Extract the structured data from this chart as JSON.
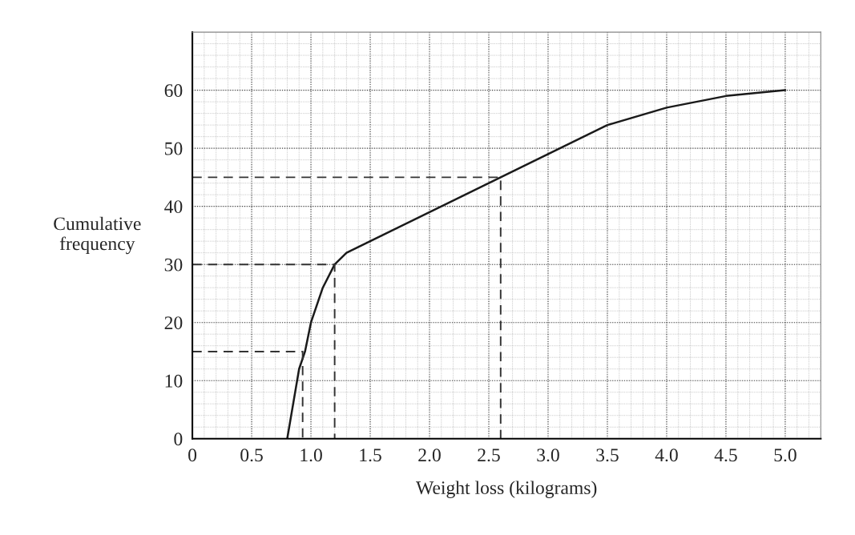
{
  "chart_data": {
    "type": "line",
    "xlabel": "Weight loss (kilograms)",
    "ylabel": "Cumulative\nfrequency",
    "xlim": [
      0,
      5.3
    ],
    "ylim": [
      0,
      70
    ],
    "xticks": [
      0,
      {
        "value": 0.5,
        "label": "0.5"
      },
      {
        "value": 1.0,
        "label": "1.0"
      },
      {
        "value": 1.5,
        "label": "1.5"
      },
      {
        "value": 2.0,
        "label": "2.0"
      },
      {
        "value": 2.5,
        "label": "2.5"
      },
      {
        "value": 3.0,
        "label": "3.0"
      },
      {
        "value": 3.5,
        "label": "3.5"
      },
      {
        "value": 4.0,
        "label": "4.0"
      },
      {
        "value": 4.5,
        "label": "4.5"
      },
      {
        "value": 5.0,
        "label": "5.0"
      }
    ],
    "yticks": [
      0,
      10,
      20,
      30,
      40,
      50,
      60
    ],
    "grid": true,
    "series": [
      {
        "line_style": "solid",
        "color": "#1a1a1a",
        "x": [
          0.8,
          0.9,
          0.95,
          1.0,
          1.1,
          1.2,
          1.3,
          1.5,
          2.0,
          2.5,
          3.0,
          3.5,
          4.0,
          4.5,
          5.0
        ],
        "values": [
          0,
          12,
          15,
          20,
          26,
          30,
          32,
          34,
          39,
          44,
          49,
          54,
          57,
          59,
          60
        ]
      },
      {
        "line_style": "dashed",
        "color": "#333333",
        "x": [
          0,
          0.93,
          0.93
        ],
        "values": [
          15,
          15,
          0
        ]
      },
      {
        "line_style": "dashed",
        "color": "#333333",
        "x": [
          0,
          1.2,
          1.2
        ],
        "values": [
          30,
          30,
          0
        ]
      },
      {
        "line_style": "dashed",
        "color": "#333333",
        "x": [
          0,
          2.6,
          2.6
        ],
        "values": [
          45,
          45,
          0
        ]
      }
    ]
  }
}
